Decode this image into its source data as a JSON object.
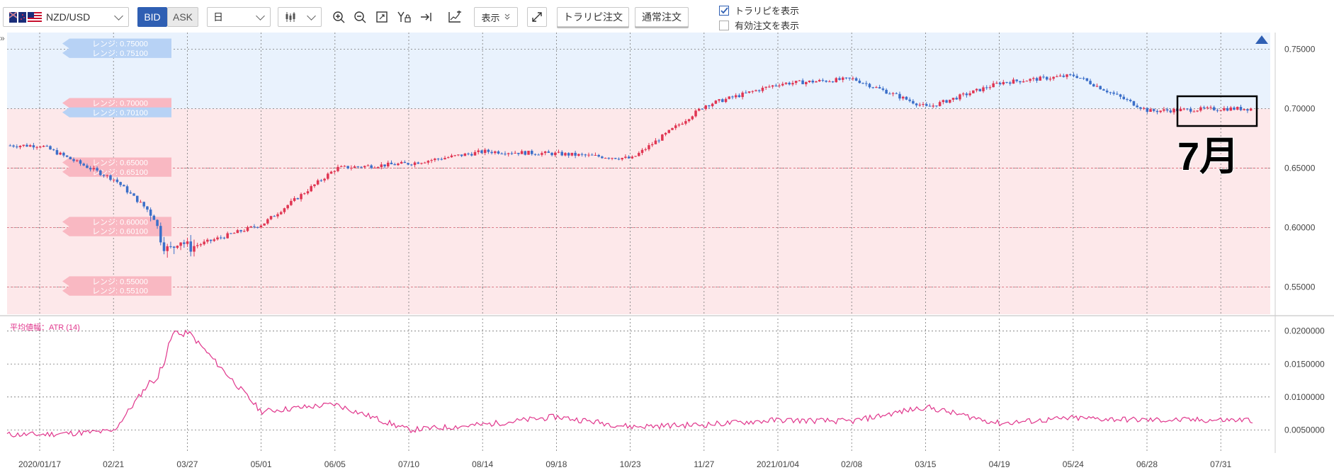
{
  "toolbar": {
    "pair": "NZD/USD",
    "bid_label": "BID",
    "ask_label": "ASK",
    "period": "日",
    "display_label": "表示",
    "traripi_order_label": "トラリピ注文",
    "normal_order_label": "通常注文",
    "show_traripi_label": "トラリピを表示",
    "show_traripi_checked": true,
    "show_active_orders_label": "有効注文を表示",
    "show_active_orders_checked": false
  },
  "colors": {
    "accent": "#2f5fb3",
    "bull_candle": "#e03552",
    "bear_candle": "#3b6fc9",
    "atr_line": "#e0368c",
    "buy_zone": "#fde8ea",
    "sell_zone": "#e9f2fd"
  },
  "chart_data": [
    {
      "type": "candlestick",
      "symbol": "NZD/USD",
      "timeframe": "日",
      "x_tick_labels": [
        "2020/01/17",
        "02/21",
        "03/27",
        "05/01",
        "06/05",
        "07/10",
        "08/14",
        "09/18",
        "10/23",
        "11/27",
        "2021/01/04",
        "02/08",
        "03/15",
        "04/19",
        "05/24",
        "06/28",
        "07/31"
      ],
      "y_tick_labels": [
        "0.75000",
        "0.70000",
        "0.65000",
        "0.60000",
        "0.55000"
      ],
      "ylim": [
        0.527,
        0.764
      ],
      "grid": true,
      "approx_close_by_tick": [
        0.669,
        0.64,
        0.583,
        0.603,
        0.65,
        0.654,
        0.664,
        0.662,
        0.658,
        0.703,
        0.721,
        0.725,
        0.701,
        0.722,
        0.728,
        0.698,
        0.7
      ],
      "range_labels": [
        {
          "text": "レンジ: 0.75000",
          "value": 0.75
        },
        {
          "text": "レンジ: 0.75100",
          "value": 0.751
        },
        {
          "text": "レンジ: 0.70000",
          "value": 0.7
        },
        {
          "text": "レンジ: 0.70100",
          "value": 0.701
        },
        {
          "text": "レンジ: 0.65000",
          "value": 0.65
        },
        {
          "text": "レンジ: 0.65100",
          "value": 0.651
        },
        {
          "text": "レンジ: 0.60000",
          "value": 0.6
        },
        {
          "text": "レンジ: 0.60100",
          "value": 0.601
        },
        {
          "text": "レンジ: 0.55000",
          "value": 0.55
        },
        {
          "text": "レンジ: 0.55100",
          "value": 0.551
        }
      ],
      "sell_zone_from": 0.7,
      "annotation": "7月"
    },
    {
      "type": "line",
      "title": "平均値幅：ATR (14)",
      "y_tick_labels": [
        "0.0200000",
        "0.0150000",
        "0.0100000",
        "0.0050000"
      ],
      "ylim": [
        0.0015,
        0.0219
      ],
      "atr_by_tick": [
        0.0043,
        0.0048,
        0.02,
        0.0078,
        0.0089,
        0.005,
        0.0058,
        0.007,
        0.0055,
        0.0058,
        0.0065,
        0.0063,
        0.0085,
        0.006,
        0.0068,
        0.0065,
        0.0065
      ]
    }
  ]
}
